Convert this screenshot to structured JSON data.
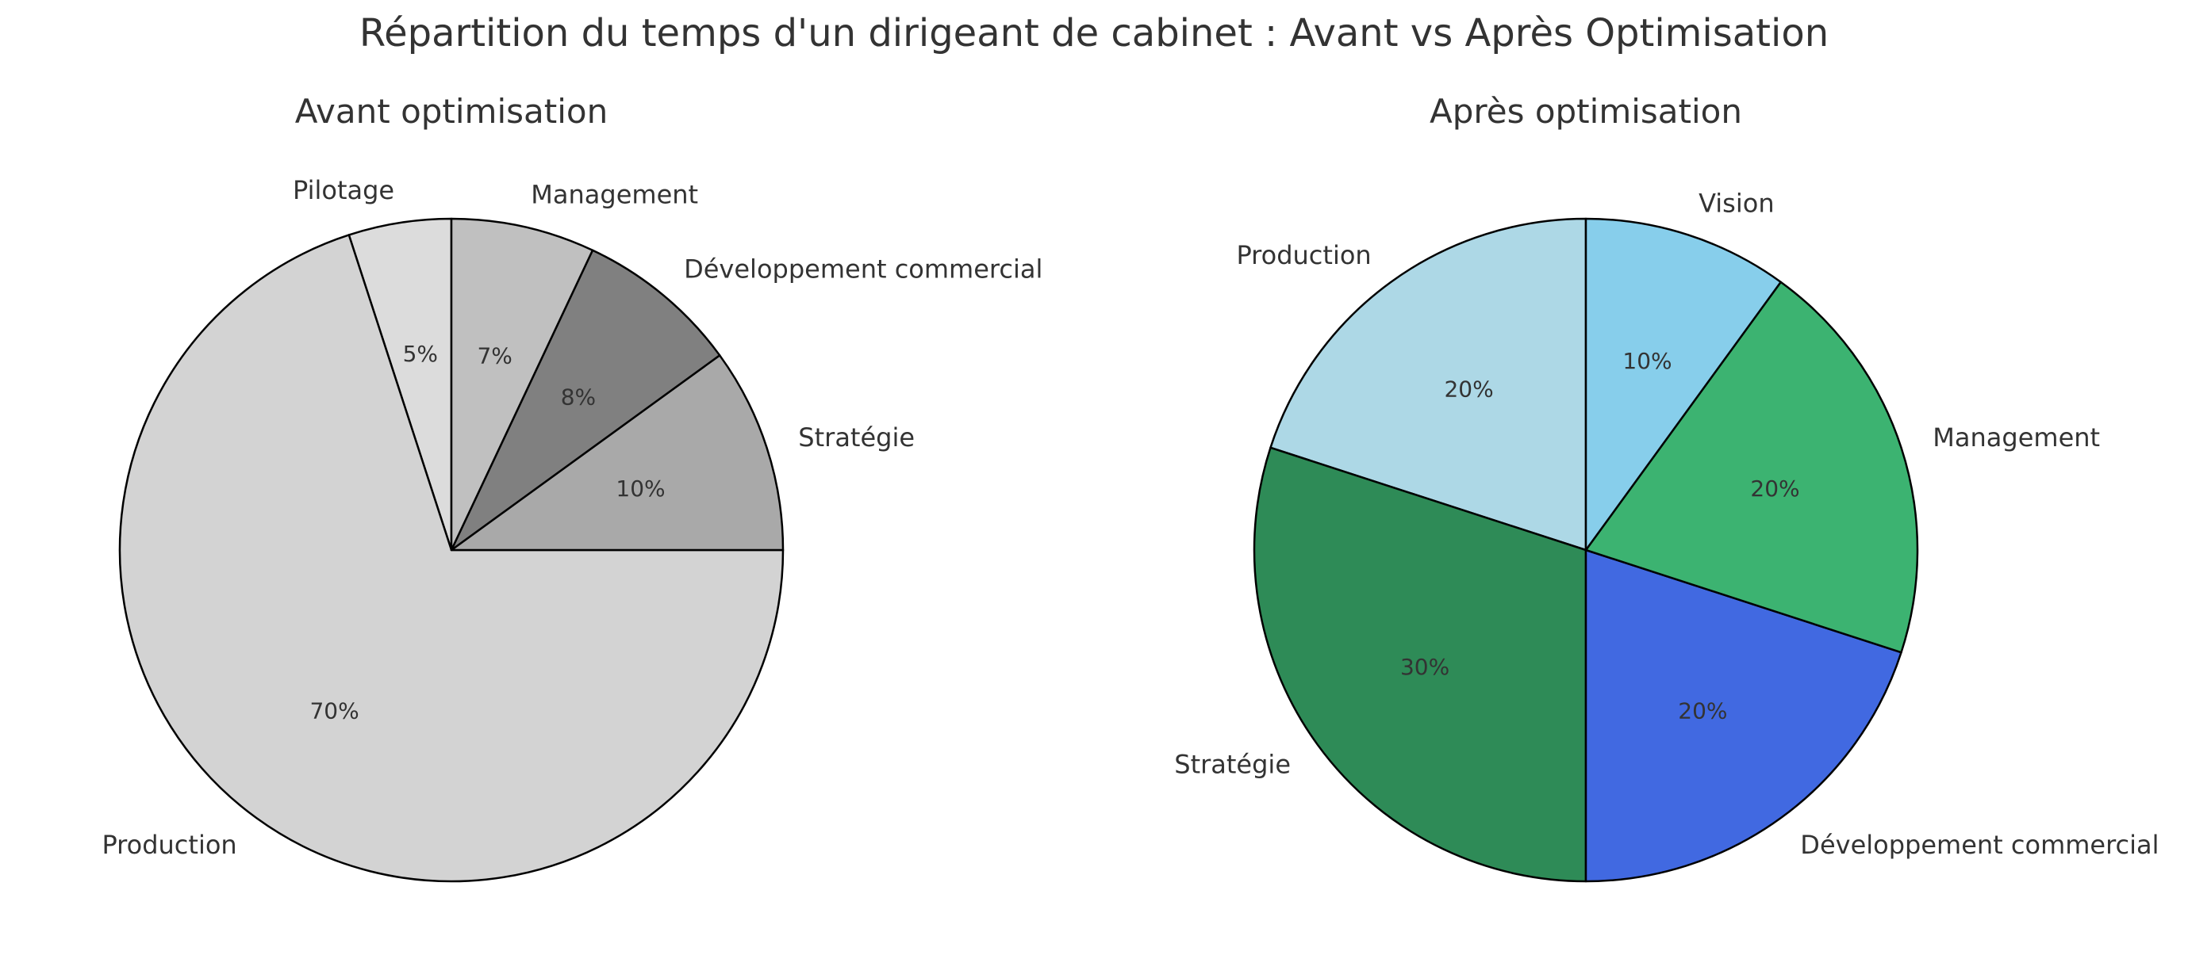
{
  "title": "Répartition du temps d'un dirigeant de cabinet : Avant vs Après Optimisation",
  "chart_data": [
    {
      "type": "pie",
      "title": "Avant optimisation",
      "start_angle_deg": 90,
      "direction": "counterclockwise",
      "slices": [
        {
          "label": "Pilotage",
          "value": 5,
          "pct_label": "5%",
          "color": "#dcdcdc"
        },
        {
          "label": "Production",
          "value": 70,
          "pct_label": "70%",
          "color": "#d3d3d3"
        },
        {
          "label": "Stratégie",
          "value": 10,
          "pct_label": "10%",
          "color": "#a9a9a9"
        },
        {
          "label": "Développement commercial",
          "value": 8,
          "pct_label": "8%",
          "color": "#808080"
        },
        {
          "label": "Management",
          "value": 7,
          "pct_label": "7%",
          "color": "#c0c0c0"
        }
      ]
    },
    {
      "type": "pie",
      "title": "Après optimisation",
      "start_angle_deg": 90,
      "direction": "counterclockwise",
      "slices": [
        {
          "label": "Production",
          "value": 20,
          "pct_label": "20%",
          "color": "#add8e6"
        },
        {
          "label": "Stratégie",
          "value": 30,
          "pct_label": "30%",
          "color": "#2e8b57"
        },
        {
          "label": "Développement commercial",
          "value": 20,
          "pct_label": "20%",
          "color": "#4169e1"
        },
        {
          "label": "Management",
          "value": 20,
          "pct_label": "20%",
          "color": "#3cb371"
        },
        {
          "label": "Vision",
          "value": 10,
          "pct_label": "10%",
          "color": "#87ceeb"
        }
      ]
    }
  ]
}
